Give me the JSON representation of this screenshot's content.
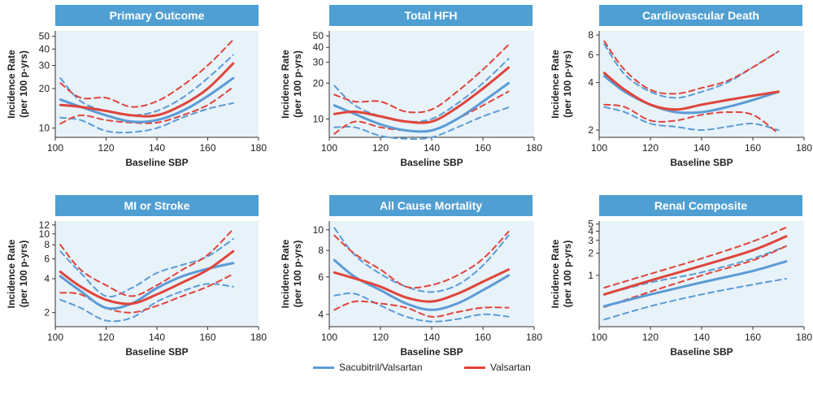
{
  "colors": {
    "sacubitril": "#5b9bd5",
    "valsartan": "#e0443a",
    "panel_bg": "#e7f2f9",
    "title_bg": "#4f9fd3",
    "title_text": "#ffffff"
  },
  "legend": {
    "sacubitril": "Sacubitril/Valsartan",
    "valsartan": "Valsartan"
  },
  "chart_data": [
    {
      "type": "line",
      "title": "Primary Outcome",
      "xlabel": "Baseline SBP",
      "ylabel": "Incidence Rate\n(per 100 p-yrs)",
      "y_scale": "log",
      "xlim": [
        100,
        180
      ],
      "ylim": [
        8.5,
        55
      ],
      "xticks": [
        100,
        120,
        140,
        160,
        180
      ],
      "yticks": [
        10,
        20,
        30,
        40,
        50
      ],
      "grid": false,
      "series": [
        {
          "name": "Sacubitril/Valsartan",
          "role": "estimate",
          "x": [
            102,
            110,
            120,
            130,
            140,
            150,
            160,
            170
          ],
          "y": [
            16.5,
            14.5,
            12.5,
            11.2,
            11.5,
            13.5,
            17.5,
            24
          ]
        },
        {
          "name": "Sacubitril/Valsartan",
          "role": "ci-upper",
          "x": [
            102,
            110,
            120,
            130,
            140,
            150,
            160,
            170
          ],
          "y": [
            24,
            16,
            13.5,
            12.5,
            13.5,
            17,
            24,
            36
          ]
        },
        {
          "name": "Sacubitril/Valsartan",
          "role": "ci-lower",
          "x": [
            102,
            110,
            120,
            130,
            140,
            150,
            160,
            170
          ],
          "y": [
            12,
            11.5,
            9.5,
            9.3,
            10,
            12,
            14,
            15.5
          ]
        },
        {
          "name": "Valsartan",
          "role": "estimate",
          "x": [
            102,
            110,
            120,
            130,
            140,
            150,
            160,
            170
          ],
          "y": [
            15,
            14.5,
            13.5,
            12.5,
            12.5,
            15,
            20,
            31
          ]
        },
        {
          "name": "Valsartan",
          "role": "ci-upper",
          "x": [
            102,
            110,
            120,
            130,
            140,
            150,
            160,
            170
          ],
          "y": [
            22,
            17,
            17,
            14.5,
            16,
            21,
            30,
            47
          ]
        },
        {
          "name": "Valsartan",
          "role": "ci-lower",
          "x": [
            102,
            110,
            120,
            130,
            140,
            150,
            160,
            170
          ],
          "y": [
            10.8,
            12.5,
            11.5,
            11,
            11,
            12.5,
            15,
            20.5
          ]
        }
      ]
    },
    {
      "type": "line",
      "title": "Total HFH",
      "xlabel": "Baseline SBP",
      "ylabel": "Incidence Rate\n(per 100 p-yrs)",
      "y_scale": "log",
      "xlim": [
        100,
        180
      ],
      "ylim": [
        7,
        55
      ],
      "xticks": [
        100,
        120,
        140,
        160,
        180
      ],
      "yticks": [
        10,
        20,
        30,
        40,
        50
      ],
      "grid": false,
      "series": [
        {
          "name": "Sacubitril/Valsartan",
          "role": "estimate",
          "x": [
            102,
            110,
            120,
            130,
            140,
            150,
            160,
            170
          ],
          "y": [
            13,
            11,
            9,
            8,
            8,
            10,
            14,
            20
          ]
        },
        {
          "name": "Sacubitril/Valsartan",
          "role": "ci-upper",
          "x": [
            102,
            110,
            120,
            130,
            140,
            150,
            160,
            170
          ],
          "y": [
            19,
            13,
            10.5,
            9.5,
            10,
            13.5,
            20,
            32
          ]
        },
        {
          "name": "Sacubitril/Valsartan",
          "role": "ci-lower",
          "x": [
            102,
            110,
            120,
            130,
            140,
            150,
            160,
            170
          ],
          "y": [
            8.5,
            8.5,
            7.2,
            6.8,
            7,
            8.5,
            10.5,
            12.5
          ]
        },
        {
          "name": "Valsartan",
          "role": "estimate",
          "x": [
            102,
            110,
            120,
            130,
            140,
            150,
            160,
            170
          ],
          "y": [
            11,
            11.5,
            10.5,
            9.5,
            9.5,
            12.5,
            18,
            27
          ]
        },
        {
          "name": "Valsartan",
          "role": "ci-upper",
          "x": [
            102,
            110,
            120,
            130,
            140,
            150,
            160,
            170
          ],
          "y": [
            16,
            14,
            14,
            11.5,
            12,
            17,
            26,
            42
          ]
        },
        {
          "name": "Valsartan",
          "role": "ci-lower",
          "x": [
            102,
            110,
            120,
            130,
            140,
            150,
            160,
            170
          ],
          "y": [
            7.5,
            9.5,
            8.5,
            8,
            8,
            10,
            13,
            17
          ]
        }
      ]
    },
    {
      "type": "line",
      "title": "Cardiovascular Death",
      "xlabel": "Baseline SBP",
      "ylabel": "Incidence Rate\n(per 100 p-yrs)",
      "y_scale": "log",
      "xlim": [
        100,
        180
      ],
      "ylim": [
        1.8,
        8.5
      ],
      "xticks": [
        100,
        120,
        140,
        160,
        180
      ],
      "yticks": [
        2,
        4,
        6,
        8
      ],
      "grid": false,
      "series": [
        {
          "name": "Sacubitril/Valsartan",
          "role": "estimate",
          "x": [
            102,
            110,
            120,
            130,
            140,
            150,
            160,
            170
          ],
          "y": [
            4.4,
            3.5,
            2.9,
            2.6,
            2.6,
            2.8,
            3.1,
            3.5
          ]
        },
        {
          "name": "Sacubitril/Valsartan",
          "role": "ci-upper",
          "x": [
            102,
            110,
            120,
            130,
            140,
            150,
            160,
            170
          ],
          "y": [
            7,
            4.5,
            3.5,
            3.2,
            3.5,
            4,
            5,
            6.3
          ]
        },
        {
          "name": "Sacubitril/Valsartan",
          "role": "ci-lower",
          "x": [
            102,
            110,
            120,
            130,
            140,
            150,
            160,
            170
          ],
          "y": [
            2.8,
            2.6,
            2.2,
            2.1,
            2,
            2.1,
            2.2,
            2
          ]
        },
        {
          "name": "Valsartan",
          "role": "estimate",
          "x": [
            102,
            110,
            120,
            130,
            140,
            150,
            160,
            170
          ],
          "y": [
            4.6,
            3.6,
            2.9,
            2.7,
            2.9,
            3.1,
            3.3,
            3.5
          ]
        },
        {
          "name": "Valsartan",
          "role": "ci-upper",
          "x": [
            102,
            110,
            120,
            130,
            140,
            150,
            160,
            170
          ],
          "y": [
            7.3,
            4.8,
            3.6,
            3.4,
            3.7,
            4.1,
            5,
            6.3
          ]
        },
        {
          "name": "Valsartan",
          "role": "ci-lower",
          "x": [
            102,
            110,
            120,
            130,
            140,
            150,
            160,
            170
          ],
          "y": [
            2.9,
            2.8,
            2.3,
            2.3,
            2.5,
            2.6,
            2.5,
            1.9
          ]
        }
      ]
    },
    {
      "type": "line",
      "title": "MI or Stroke",
      "xlabel": "Baseline SBP",
      "ylabel": "Incidence Rate\n(per 100 p-yrs)",
      "y_scale": "log",
      "xlim": [
        100,
        180
      ],
      "ylim": [
        1.5,
        13
      ],
      "xticks": [
        100,
        120,
        140,
        160,
        180
      ],
      "yticks": [
        2,
        4,
        6,
        8,
        10,
        12
      ],
      "grid": false,
      "series": [
        {
          "name": "Sacubitril/Valsartan",
          "role": "estimate",
          "x": [
            102,
            110,
            120,
            130,
            140,
            150,
            160,
            170
          ],
          "y": [
            4.2,
            3.1,
            2.2,
            2.4,
            3.3,
            4.2,
            4.9,
            5.5
          ]
        },
        {
          "name": "Sacubitril/Valsartan",
          "role": "ci-upper",
          "x": [
            102,
            110,
            120,
            130,
            140,
            150,
            160,
            170
          ],
          "y": [
            7,
            4.5,
            2.8,
            3.3,
            4.5,
            5.3,
            6.3,
            9
          ]
        },
        {
          "name": "Sacubitril/Valsartan",
          "role": "ci-lower",
          "x": [
            102,
            110,
            120,
            130,
            140,
            150,
            160,
            170
          ],
          "y": [
            2.6,
            2.2,
            1.7,
            1.8,
            2.5,
            3.1,
            3.6,
            3.4
          ]
        },
        {
          "name": "Valsartan",
          "role": "estimate",
          "x": [
            102,
            110,
            120,
            130,
            140,
            150,
            160,
            170
          ],
          "y": [
            4.6,
            3.4,
            2.6,
            2.4,
            2.9,
            3.7,
            4.8,
            7
          ]
        },
        {
          "name": "Valsartan",
          "role": "ci-upper",
          "x": [
            102,
            110,
            120,
            130,
            140,
            150,
            160,
            170
          ],
          "y": [
            8,
            4.8,
            3.5,
            2.8,
            3.5,
            4.8,
            6.5,
            11
          ]
        },
        {
          "name": "Valsartan",
          "role": "ci-lower",
          "x": [
            102,
            110,
            120,
            130,
            140,
            150,
            160,
            170
          ],
          "y": [
            3,
            2.9,
            2.2,
            2,
            2.3,
            2.8,
            3.4,
            4.4
          ]
        }
      ]
    },
    {
      "type": "line",
      "title": "All Cause Mortality",
      "xlabel": "Baseline SBP",
      "ylabel": "Incidence Rate\n(per 100 p-yrs)",
      "y_scale": "log",
      "xlim": [
        100,
        180
      ],
      "ylim": [
        3.5,
        11
      ],
      "xticks": [
        100,
        120,
        140,
        160,
        180
      ],
      "yticks": [
        4,
        6,
        8,
        10
      ],
      "grid": false,
      "series": [
        {
          "name": "Sacubitril/Valsartan",
          "role": "estimate",
          "x": [
            102,
            110,
            120,
            130,
            140,
            150,
            160,
            170
          ],
          "y": [
            7.2,
            6,
            5.2,
            4.5,
            4.2,
            4.5,
            5.2,
            6.1
          ]
        },
        {
          "name": "Sacubitril/Valsartan",
          "role": "ci-upper",
          "x": [
            102,
            110,
            120,
            130,
            140,
            150,
            160,
            170
          ],
          "y": [
            10.2,
            7.6,
            6.2,
            5.4,
            5.1,
            5.5,
            6.8,
            9.4
          ]
        },
        {
          "name": "Sacubitril/Valsartan",
          "role": "ci-lower",
          "x": [
            102,
            110,
            120,
            130,
            140,
            150,
            160,
            170
          ],
          "y": [
            4.9,
            5,
            4.4,
            3.9,
            3.7,
            3.8,
            4,
            3.9
          ]
        },
        {
          "name": "Valsartan",
          "role": "estimate",
          "x": [
            102,
            110,
            120,
            130,
            140,
            150,
            160,
            170
          ],
          "y": [
            6.3,
            5.9,
            5.4,
            4.8,
            4.6,
            5,
            5.7,
            6.5
          ]
        },
        {
          "name": "Valsartan",
          "role": "ci-upper",
          "x": [
            102,
            110,
            120,
            130,
            140,
            150,
            160,
            170
          ],
          "y": [
            9.4,
            7.7,
            6.5,
            5.4,
            5.5,
            6.1,
            7.3,
            9.8
          ]
        },
        {
          "name": "Valsartan",
          "role": "ci-lower",
          "x": [
            102,
            110,
            120,
            130,
            140,
            150,
            160,
            170
          ],
          "y": [
            4.2,
            4.6,
            4.5,
            4.3,
            3.9,
            4.1,
            4.3,
            4.3
          ]
        }
      ]
    },
    {
      "type": "line",
      "title": "Renal Composite",
      "xlabel": "Baseline SBP",
      "ylabel": "Incidence Rate\n(per 100 p-yrs)",
      "y_scale": "log",
      "xlim": [
        100,
        180
      ],
      "ylim": [
        0.2,
        5.5
      ],
      "xticks": [
        100,
        120,
        140,
        160,
        180
      ],
      "yticks": [
        1,
        2,
        3,
        4,
        5
      ],
      "grid": false,
      "series": [
        {
          "name": "Sacubitril/Valsartan",
          "role": "estimate",
          "x": [
            102,
            120,
            140,
            160,
            173
          ],
          "y": [
            0.38,
            0.55,
            0.8,
            1.15,
            1.55
          ]
        },
        {
          "name": "Sacubitril/Valsartan",
          "role": "ci-upper",
          "x": [
            102,
            120,
            140,
            160,
            173
          ],
          "y": [
            0.55,
            0.8,
            1.1,
            1.7,
            2.5
          ]
        },
        {
          "name": "Sacubitril/Valsartan",
          "role": "ci-lower",
          "x": [
            102,
            120,
            140,
            160,
            173
          ],
          "y": [
            0.25,
            0.38,
            0.55,
            0.75,
            0.9
          ]
        },
        {
          "name": "Valsartan",
          "role": "estimate",
          "x": [
            102,
            120,
            140,
            160,
            173
          ],
          "y": [
            0.55,
            0.85,
            1.35,
            2.2,
            3.4
          ]
        },
        {
          "name": "Valsartan",
          "role": "ci-upper",
          "x": [
            102,
            120,
            140,
            160,
            173
          ],
          "y": [
            0.68,
            1.05,
            1.7,
            2.9,
            4.5
          ]
        },
        {
          "name": "Valsartan",
          "role": "ci-lower",
          "x": [
            102,
            120,
            140,
            160,
            173
          ],
          "y": [
            0.37,
            0.6,
            1,
            1.6,
            2.5
          ]
        }
      ]
    }
  ]
}
